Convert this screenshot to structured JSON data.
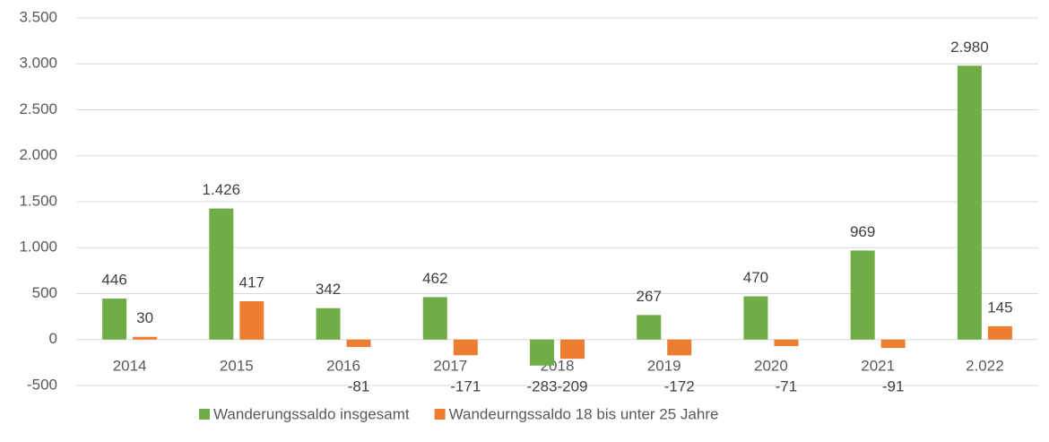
{
  "chart_data": {
    "type": "bar",
    "categories": [
      "2014",
      "2015",
      "2016",
      "2017",
      "2018",
      "2019",
      "2020",
      "2021",
      "2.022"
    ],
    "series": [
      {
        "name": "Wanderungssaldo insgesamt",
        "color": "#70ad47",
        "values": [
          446,
          1426,
          342,
          462,
          -283,
          267,
          470,
          969,
          2980
        ],
        "value_labels": [
          "446",
          "1.426",
          "342",
          "462",
          "-283",
          "267",
          "470",
          "969",
          "2.980"
        ]
      },
      {
        "name": "Wandeurngssaldo 18 bis unter 25 Jahre",
        "color": "#ed7d31",
        "values": [
          30,
          417,
          -81,
          -171,
          -209,
          -172,
          -71,
          -91,
          145
        ]
      }
    ],
    "ylim": [
      -500,
      3500
    ],
    "yticks": [
      -500,
      0,
      500,
      {
        "value": 1000,
        "label": "1.000"
      },
      {
        "value": 1500,
        "label": "1.500"
      },
      {
        "value": 2000,
        "label": "2.000"
      },
      {
        "value": 2500,
        "label": "2.500"
      },
      {
        "value": 3000,
        "label": "3.000"
      },
      {
        "value": 3500,
        "label": "3.500"
      }
    ],
    "grid": true,
    "legend": "bottom"
  }
}
